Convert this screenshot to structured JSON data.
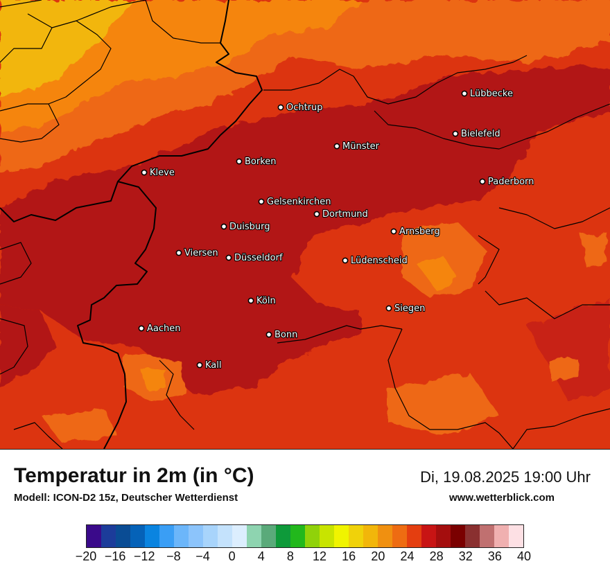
{
  "header": {
    "title": "Temperatur in 2m (in °C)",
    "model": "Modell: ICON-D2 15z, Deutscher Wetterdienst",
    "datetime": "Di, 19.08.2025 19:00 Uhr",
    "website": "www.wetterblick.com"
  },
  "colors": {
    "hot_dark": "#b21414",
    "hot": "#dc3410",
    "warm_orange": "#ee6812",
    "warm": "#f5850f",
    "mild": "#f2b60a",
    "border_line": "#000000"
  },
  "cities": [
    {
      "name": "Lübbecke"
    },
    {
      "name": "Ochtrup"
    },
    {
      "name": "Bielefeld"
    },
    {
      "name": "Münster"
    },
    {
      "name": "Borken"
    },
    {
      "name": "Kleve"
    },
    {
      "name": "Paderborn"
    },
    {
      "name": "Gelsenkirchen"
    },
    {
      "name": "Dortmund"
    },
    {
      "name": "Duisburg"
    },
    {
      "name": "Arnsberg"
    },
    {
      "name": "Viersen"
    },
    {
      "name": "Düsseldorf"
    },
    {
      "name": "Lüdenscheid"
    },
    {
      "name": "Köln"
    },
    {
      "name": "Siegen"
    },
    {
      "name": "Aachen"
    },
    {
      "name": "Bonn"
    },
    {
      "name": "Kall"
    }
  ],
  "legend": {
    "unit": "°C",
    "min": -20,
    "max": 40,
    "tick_labels": [
      "−20",
      "−16",
      "−12",
      "−8",
      "−4",
      "0",
      "4",
      "8",
      "12",
      "16",
      "20",
      "24",
      "28",
      "32",
      "36",
      "40"
    ],
    "colors": [
      "#3a0a8a",
      "#1c3c9a",
      "#0a4c94",
      "#0562b8",
      "#0a84e0",
      "#3a9ef5",
      "#6cb6fa",
      "#8cc4fb",
      "#a8d4fb",
      "#c4e2fc",
      "#dceefe",
      "#8ed4b0",
      "#5aaa7a",
      "#0e9a3a",
      "#22b81c",
      "#90d20a",
      "#c8e400",
      "#f0f400",
      "#f0d20a",
      "#f2b60a",
      "#f09010",
      "#ee6c12",
      "#e43e10",
      "#c81414",
      "#a40e0e",
      "#7a0000",
      "#8a3030",
      "#c07070",
      "#f0b0b0",
      "#fde0e4"
    ]
  }
}
